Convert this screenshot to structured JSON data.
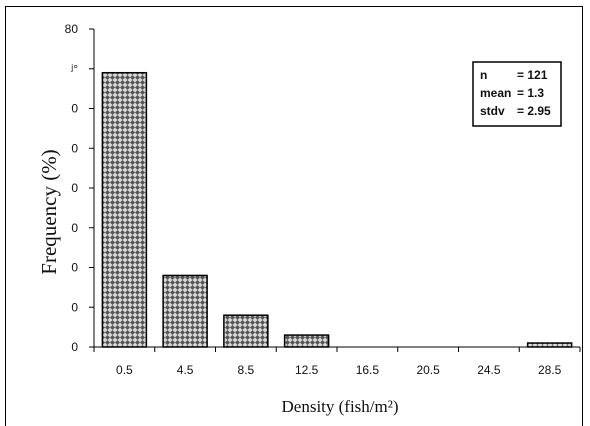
{
  "chart_data": {
    "type": "bar",
    "xlabel": "Density (fish/m²)",
    "ylabel": "Frequency (%)",
    "categories": [
      "0.5",
      "4.5",
      "8.5",
      "12.5",
      "16.5",
      "20.5",
      "24.5",
      "28.5"
    ],
    "values": [
      69,
      18,
      8,
      3,
      0,
      0,
      0,
      1
    ],
    "ylim": [
      0,
      80
    ],
    "y_ticks": [
      "0",
      "0",
      "0",
      "0",
      "0",
      "0",
      "0",
      "ʲ°",
      "80"
    ],
    "grid": false,
    "legend_placement": "top-right",
    "bar_fill": "#9a9a9a",
    "stats": [
      {
        "label": "n",
        "value": "= 121"
      },
      {
        "label": "mean",
        "value": "= 1.3"
      },
      {
        "label": "stdv",
        "value": "= 2.95"
      }
    ]
  }
}
